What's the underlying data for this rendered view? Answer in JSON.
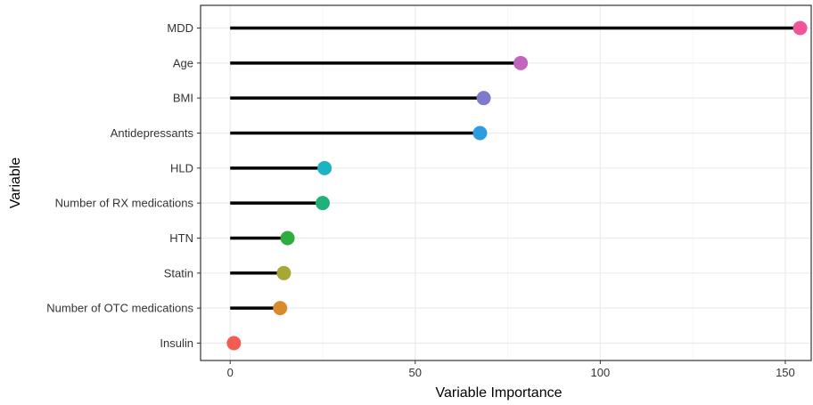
{
  "chart_data": {
    "type": "lollipop",
    "orientation": "horizontal",
    "title": "",
    "xlabel": "Variable Importance",
    "ylabel": "Variable",
    "xlim": [
      -8,
      157
    ],
    "x_ticks": [
      0,
      50,
      100,
      150
    ],
    "grid": true,
    "legend": "none",
    "theme_colors": {
      "panel_border": "#333333",
      "grid_major": "#ebebeb",
      "grid_minor": "#f5f5f5",
      "stem": "#000000"
    },
    "categories": [
      "MDD",
      "Age",
      "BMI",
      "Antidepressants",
      "HLD",
      "Number of RX medications",
      "HTN",
      "Statin",
      "Number of OTC medications",
      "Insulin"
    ],
    "values": [
      154,
      78.5,
      68.5,
      67.5,
      25.5,
      25,
      15.5,
      14.5,
      13.5,
      1
    ],
    "colors": [
      "#F0559A",
      "#C165BE",
      "#7F7BCA",
      "#2E9CE0",
      "#1CB3C2",
      "#22B07A",
      "#2CAE3E",
      "#A7A736",
      "#D98A2C",
      "#F25C52"
    ]
  }
}
